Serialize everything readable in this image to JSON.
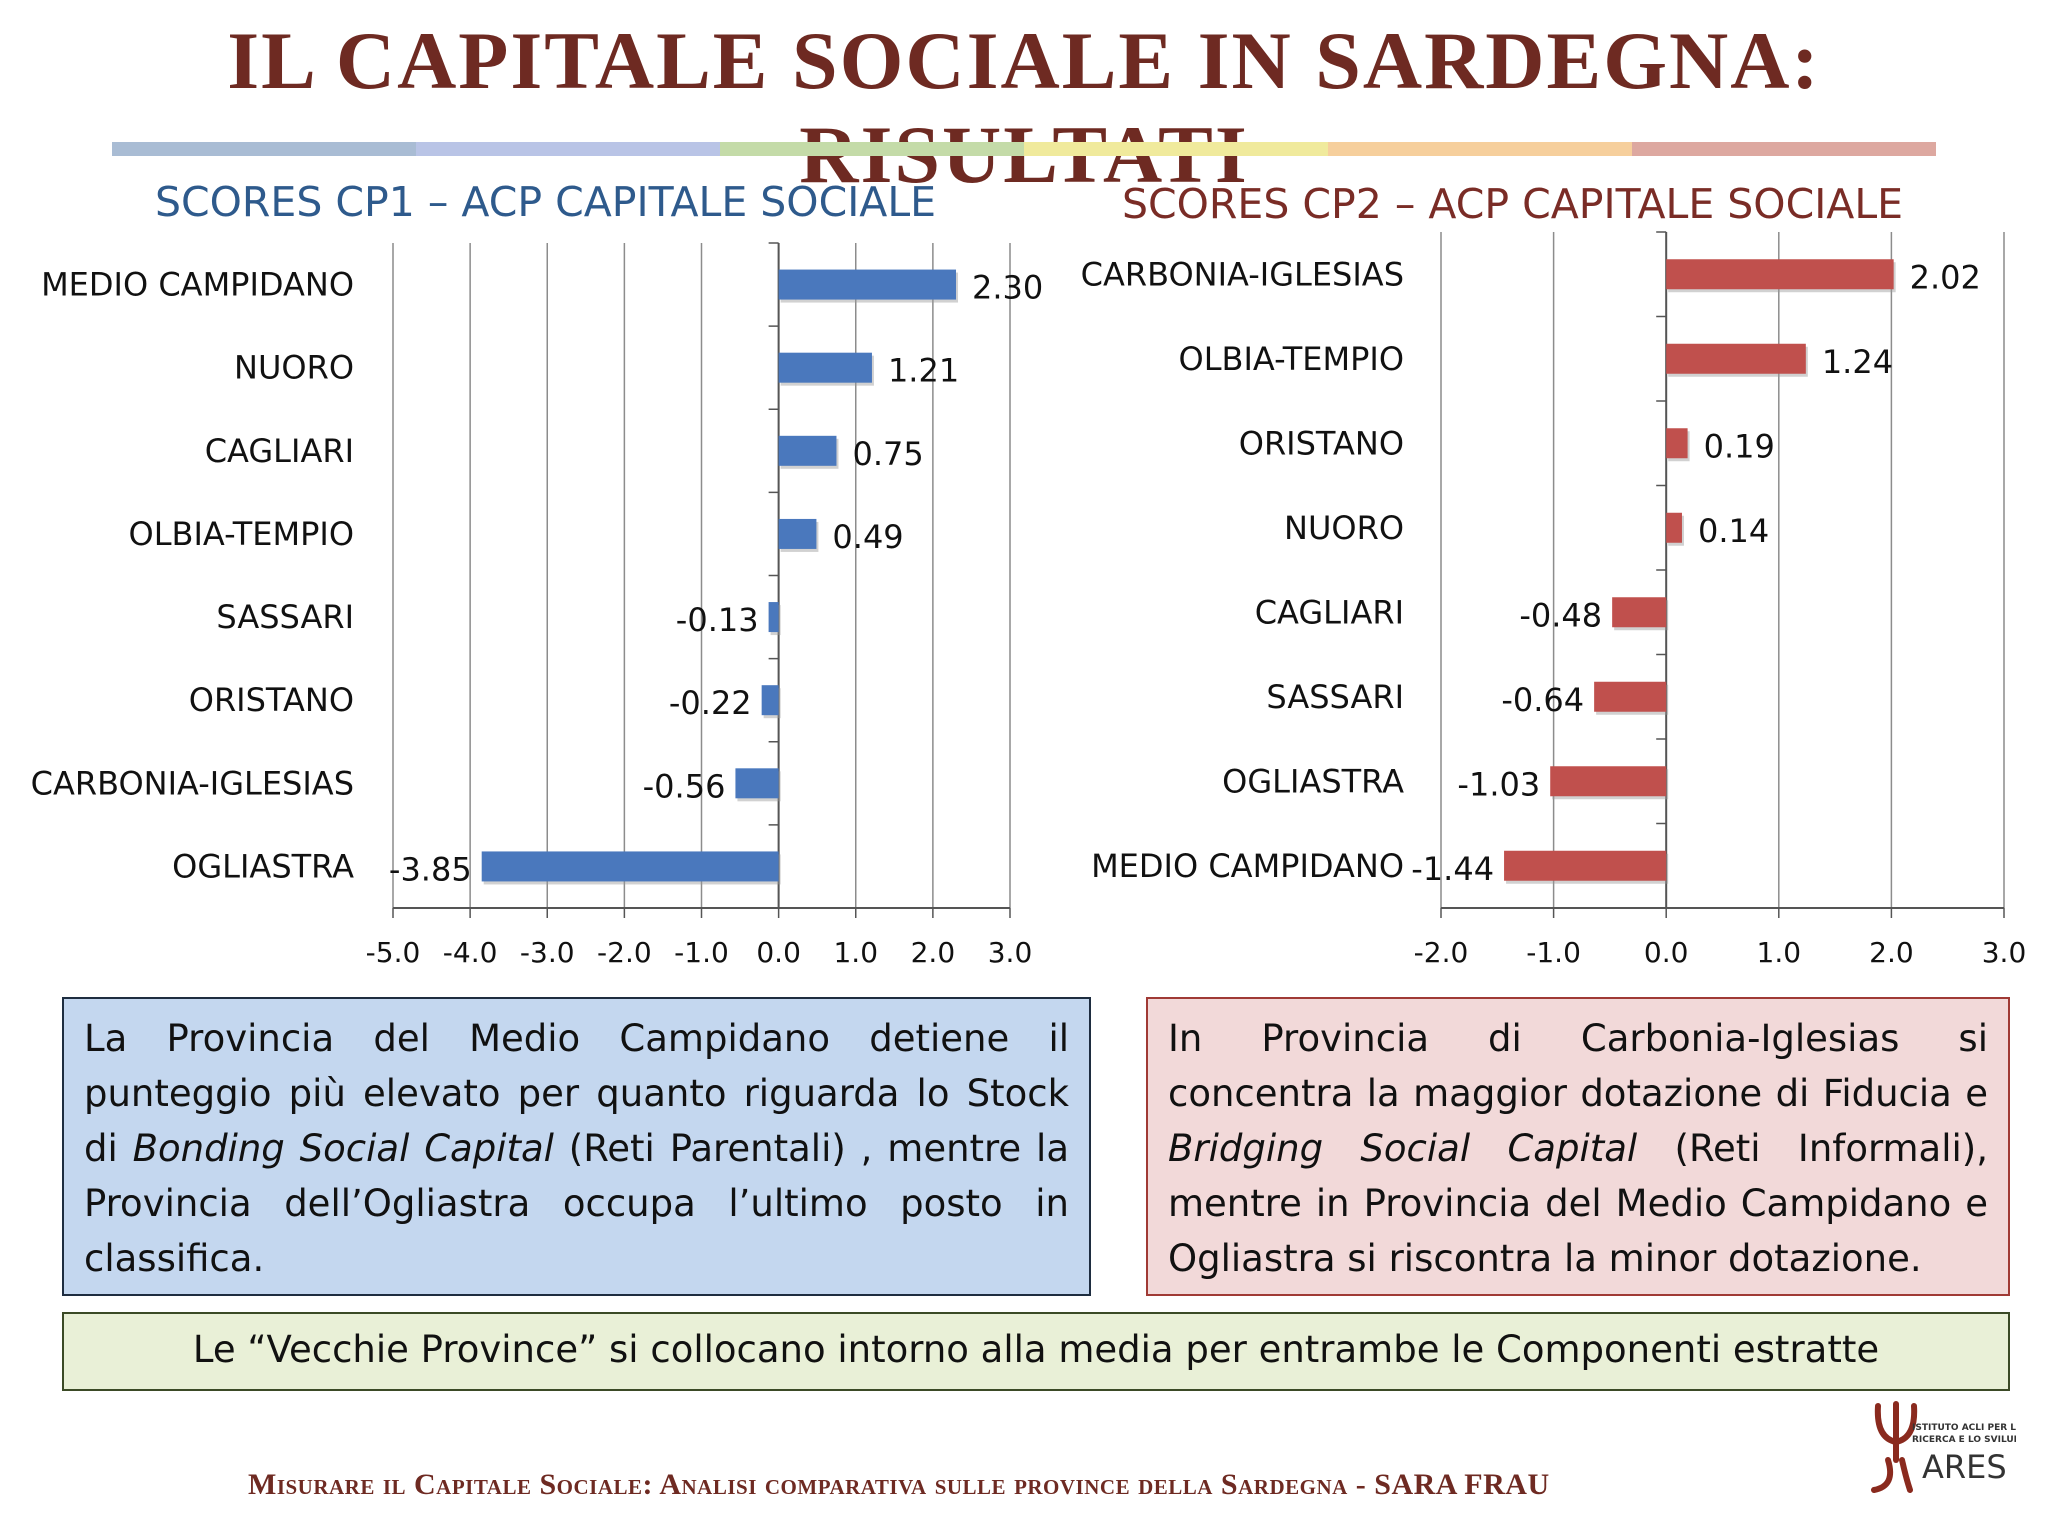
{
  "slide": {
    "title": "IL CAPITALE SOCIALE IN SARDEGNA: RISULTATI",
    "divider_colors": [
      "#a9bcd4",
      "#b9c4e6",
      "#c4dba8",
      "#f0ea9c",
      "#f6cf9c",
      "#dda8a0"
    ],
    "accent_color": "#6e2a22"
  },
  "chart_data": [
    {
      "type": "bar",
      "orientation": "horizontal",
      "title": "SCORES CP1 – ACP CAPITALE SOCIALE",
      "categories": [
        "MEDIO CAMPIDANO",
        "NUORO",
        "CAGLIARI",
        "OLBIA-TEMPIO",
        "SASSARI",
        "ORISTANO",
        "CARBONIA-IGLESIAS",
        "OGLIASTRA"
      ],
      "values": [
        2.3,
        1.21,
        0.75,
        0.49,
        -0.13,
        -0.22,
        -0.56,
        -3.85
      ],
      "value_labels": [
        "2.30",
        "1.21",
        "0.75",
        "0.49",
        "-0.13",
        "-0.22",
        "-0.56",
        "-3.85"
      ],
      "xlim": [
        -5.0,
        3.0
      ],
      "xticks": [
        "-5.0",
        "-4.0",
        "-3.0",
        "-2.0",
        "-1.0",
        "0.0",
        "1.0",
        "2.0",
        "3.0"
      ],
      "grid": true,
      "color": "#4a78bd"
    },
    {
      "type": "bar",
      "orientation": "horizontal",
      "title": "SCORES CP2 – ACP CAPITALE SOCIALE",
      "categories": [
        "CARBONIA-IGLESIAS",
        "OLBIA-TEMPIO",
        "ORISTANO",
        "NUORO",
        "CAGLIARI",
        "SASSARI",
        "OGLIASTRA",
        "MEDIO CAMPIDANO"
      ],
      "values": [
        2.02,
        1.24,
        0.19,
        0.14,
        -0.48,
        -0.64,
        -1.03,
        -1.44
      ],
      "value_labels": [
        "2.02",
        "1.24",
        "0.19",
        "0.14",
        "-0.48",
        "-0.64",
        "-1.03",
        "-1.44"
      ],
      "xlim": [
        -2.0,
        3.0
      ],
      "xticks": [
        "-2.0",
        "-1.0",
        "0.0",
        "1.0",
        "2.0",
        "3.0"
      ],
      "grid": true,
      "color": "#c0504d"
    }
  ],
  "boxes": {
    "blue": {
      "t1": "La Provincia del Medio Campidano detiene il punteggio più elevato per quanto riguarda lo Stock di ",
      "em1": "Bonding Social Capital",
      "t2": " (Reti Parentali) , mentre la Provincia dell’Ogliastra occupa l’ultimo posto in classifica."
    },
    "red": {
      "t1": "In Provincia di Carbonia-Iglesias si concentra la maggior dotazione di Fiducia e ",
      "em1": "Bridging Social Capital",
      "t2": " (Reti Informali), mentre in Provincia del Medio Campidano e Ogliastra si riscontra la minor dotazione."
    },
    "green": "Le “Vecchie Province” si collocano intorno alla media per entrambe le Componenti estratte"
  },
  "footer": {
    "text": "Misurare il Capitale Sociale: Analisi comparativa sulle province della Sardegna - ",
    "author": "SARA FRAU"
  },
  "logo": {
    "icon": "ares-trident-icon",
    "line1": "ISTITUTO ACLI PER LA",
    "line2": "RICERCA E LO SVILUPPO",
    "name": "ARES"
  }
}
